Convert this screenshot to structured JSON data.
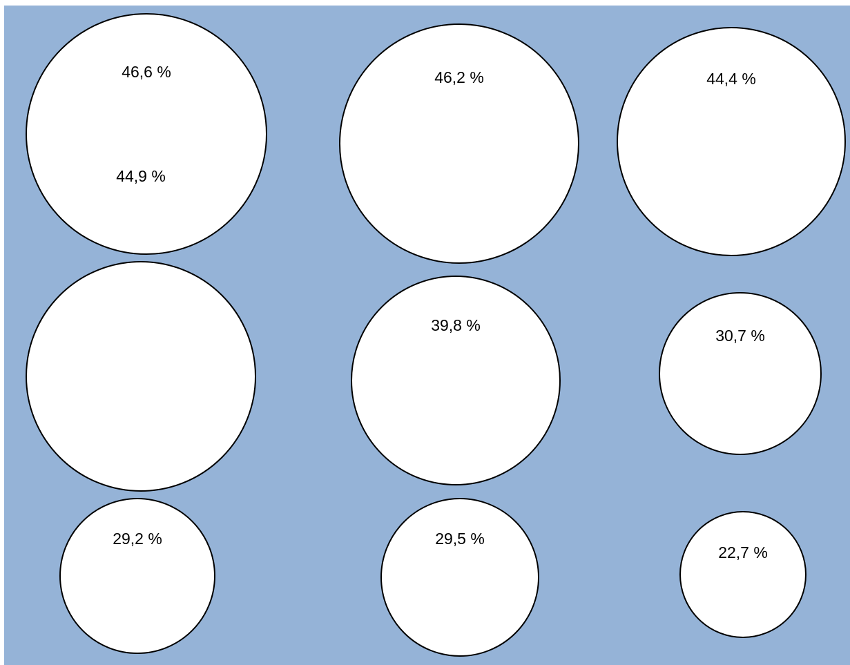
{
  "chart_data": {
    "type": "bubble",
    "background_color": "#95b3d7",
    "bubble_fill": "#ffffff",
    "bubble_stroke": "#000000",
    "grid": false,
    "legend": "none",
    "bubbles": [
      {
        "label": "46,6 %",
        "value": 46.6
      },
      {
        "label": "46,2 %",
        "value": 46.2
      },
      {
        "label": "44,4 %",
        "value": 44.4
      },
      {
        "label": "44,9 %",
        "value": 44.9
      },
      {
        "label": "39,8 %",
        "value": 39.8
      },
      {
        "label": "30,7 %",
        "value": 30.7
      },
      {
        "label": "29,2 %",
        "value": 29.2
      },
      {
        "label": "29,5 %",
        "value": 29.5
      },
      {
        "label": "22,7 %",
        "value": 22.7
      }
    ]
  }
}
